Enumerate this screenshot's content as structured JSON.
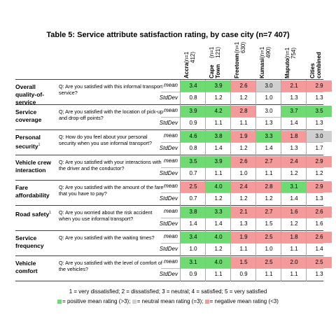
{
  "title": "Table 5: Service attribute satisfaction rating, by case city (n=7 407)",
  "columns": [
    {
      "city": "Accra",
      "n": "(n=1 412)"
    },
    {
      "city": "Cape Town",
      "n": "(n=1 121)"
    },
    {
      "city": "Freetown",
      "n": "(n=1 630)"
    },
    {
      "city": "Kumasi",
      "n": "(n=1 490)"
    },
    {
      "city": "Maputo",
      "n": "(n=1 754)"
    },
    {
      "city": "Cities combined",
      "n": ""
    }
  ],
  "rows": [
    {
      "attr": "Overall quality-of-service",
      "sup": "",
      "question": "Q: Are you satisfied with this informal transport service?",
      "mean": [
        "3.4",
        "3.9",
        "2.6",
        "3.0",
        "2.1",
        "2.9"
      ],
      "mean_class": [
        "pos",
        "pos",
        "neg",
        "neu",
        "neg",
        "neg"
      ],
      "std": [
        "0.8",
        "1.2",
        "1.2",
        "1.0",
        "1.3",
        "1.3"
      ]
    },
    {
      "attr": "Service coverage",
      "sup": "",
      "question": "Q; Are you satisfied with the location of pick-up and drop-off points?",
      "mean": [
        "3.9",
        "4.2",
        "2.8",
        "3.0",
        "3.7",
        "3.5"
      ],
      "mean_class": [
        "pos",
        "pos",
        "neg",
        "plain",
        "pos",
        "pos"
      ],
      "std": [
        "0.9",
        "1.1",
        "1.1",
        "1.3",
        "1.4",
        "1.3"
      ]
    },
    {
      "attr": "Personal security",
      "sup": "1",
      "question": "Q: How do you feel about your personal security when you use informal transport?",
      "mean": [
        "4.6",
        "3.8",
        "1.9",
        "3.3",
        "1.8",
        "3.0"
      ],
      "mean_class": [
        "pos",
        "pos",
        "neg",
        "pos",
        "neg",
        "neu"
      ],
      "std": [
        "0.8",
        "1.4",
        "1.2",
        "1.4",
        "1.3",
        "1.7"
      ]
    },
    {
      "attr": "Vehicle crew interaction",
      "sup": "",
      "question": "Q: Are you satisfied with your interactions with the driver and the conductor?",
      "mean": [
        "3.5",
        "3.9",
        "2.6",
        "2.7",
        "2.4",
        "2.9"
      ],
      "mean_class": [
        "pos",
        "pos",
        "neg",
        "neg",
        "neg",
        "neg"
      ],
      "std": [
        "0.7",
        "1.1",
        "1.0",
        "1.1",
        "1.2",
        "1.2"
      ]
    },
    {
      "attr": "Fare affordability",
      "sup": "",
      "question": "Q: Are you satisfied with the amount of the fare that you have to pay?",
      "mean": [
        "2.5",
        "4.0",
        "2.4",
        "2.8",
        "3.1",
        "2.9"
      ],
      "mean_class": [
        "neg",
        "pos",
        "neg",
        "neg",
        "pos",
        "neg"
      ],
      "std": [
        "0.7",
        "1.2",
        "1.2",
        "1.2",
        "1.4",
        "1.3"
      ]
    },
    {
      "attr": "Road safety",
      "sup": "1",
      "question": "Q: Are you worried about the risk accident when you use informal transport?",
      "mean": [
        "3.8",
        "3.3",
        "2.1",
        "2.7",
        "1.6",
        "2.6"
      ],
      "mean_class": [
        "pos",
        "pos",
        "neg",
        "neg",
        "neg",
        "neg"
      ],
      "std": [
        "1.4",
        "1.4",
        "1.3",
        "1.5",
        "1.2",
        "1.6"
      ]
    },
    {
      "attr": "Service frequency",
      "sup": "",
      "question": "Q: Are you satisfied with the waiting times?",
      "mean": [
        "3.4",
        "4.0",
        "1.9",
        "2.5",
        "1.8",
        "2.6"
      ],
      "mean_class": [
        "pos",
        "pos",
        "neg",
        "neg",
        "neg",
        "neg"
      ],
      "std": [
        "1.0",
        "1.2",
        "1.1",
        "1.0",
        "1.1",
        "1.4"
      ]
    },
    {
      "attr": "Vehicle comfort",
      "sup": "",
      "question": "Q: Are you satisfied with the level of comfort of the vehicles?",
      "mean": [
        "3.1",
        "4.0",
        "1.5",
        "2.5",
        "2.0",
        "2.5"
      ],
      "mean_class": [
        "pos",
        "pos",
        "neg",
        "neg",
        "neg",
        "neg"
      ],
      "std": [
        "0.9",
        "1.1",
        "0.9",
        "1.1",
        "1.1",
        "1.3"
      ]
    }
  ],
  "stat_labels": {
    "mean": "mean",
    "std": "StdDev"
  },
  "footer": {
    "scale": "1 = very dissatisfied; 2 = dissatisfied; 3 = neutral; 4 = satisfied; 5 = very satisfied",
    "legend_pos": "= positive mean rating (>3);",
    "legend_neu": "= neutral mean rating (=3);",
    "legend_neg": "= negative mean rating (<3)"
  },
  "colors": {
    "positive": "#6edb72",
    "neutral": "#cfcfcf",
    "negative": "#f59a9a"
  }
}
